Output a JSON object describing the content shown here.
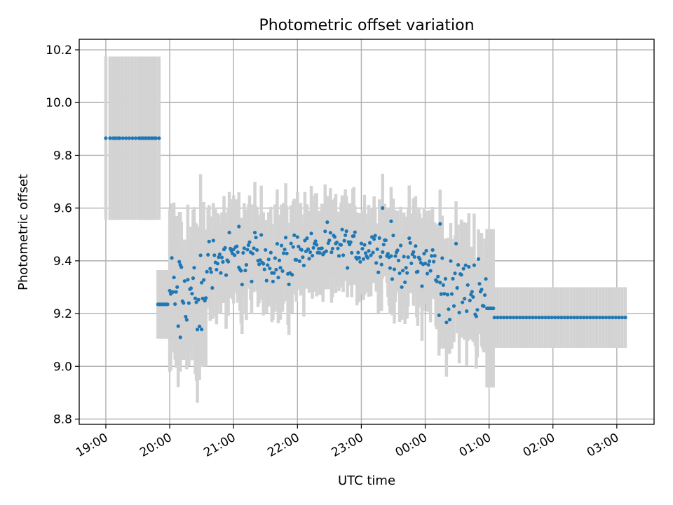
{
  "chart_data": {
    "type": "scatter",
    "title": "Photometric offset variation",
    "xlabel": "UTC time",
    "ylabel": "Photometric offset",
    "x_ticks": [
      "19:00",
      "20:00",
      "21:00",
      "22:00",
      "23:00",
      "00:00",
      "01:00",
      "02:00",
      "03:00"
    ],
    "y_ticks": [
      "8.8",
      "9.0",
      "9.2",
      "9.4",
      "9.6",
      "9.8",
      "10.0",
      "10.2"
    ],
    "ylim": [
      8.78,
      10.24
    ],
    "xlim": [
      "18:35",
      "03:35"
    ],
    "grid": true,
    "legend": "none",
    "colors": {
      "points": "#1f77b4",
      "errorbars": "#d3d3d3"
    },
    "segments": [
      {
        "from": "19:00",
        "to": "19:12",
        "y": 9.865,
        "err": 0.31,
        "step_min": 4
      },
      {
        "from": "19:04",
        "to": "19:48",
        "y": 9.865,
        "err": 0.31,
        "step_min": 3
      },
      {
        "from": "19:32",
        "to": "19:50",
        "y": 9.865,
        "err": 0.31,
        "step_min": 3
      },
      {
        "from": "19:49",
        "to": "19:59",
        "y": 9.235,
        "err": 0.13,
        "step_min": 1.5
      },
      {
        "from": "00:58",
        "to": "01:04",
        "y": 9.22,
        "err": 0.3,
        "step_min": 1.5
      },
      {
        "from": "01:05",
        "to": "03:10",
        "y": 9.185,
        "err": 0.115,
        "step_min": 3
      }
    ],
    "noisy_regions": [
      {
        "from": "20:00",
        "to": "20:35",
        "mean": 9.27,
        "spread": 0.13,
        "err": 0.22,
        "step_min": 1
      },
      {
        "from": "20:35",
        "to": "22:00",
        "mean": 9.41,
        "spread": 0.07,
        "err": 0.15,
        "step_min": 1
      },
      {
        "from": "22:00",
        "to": "23:25",
        "mean": 9.45,
        "spread": 0.05,
        "err": 0.14,
        "step_min": 1
      },
      {
        "from": "23:25",
        "to": "00:10",
        "mean": 9.4,
        "spread": 0.06,
        "err": 0.15,
        "step_min": 1
      },
      {
        "from": "00:10",
        "to": "00:58",
        "mean": 9.3,
        "spread": 0.09,
        "err": 0.16,
        "step_min": 1
      }
    ],
    "notable_points": [
      {
        "x": "23:20",
        "y": 9.6
      },
      {
        "x": "23:28",
        "y": 9.55
      },
      {
        "x": "20:10",
        "y": 9.11
      },
      {
        "x": "20:30",
        "y": 9.14
      },
      {
        "x": "21:05",
        "y": 9.53
      },
      {
        "x": "00:14",
        "y": 9.54
      }
    ]
  }
}
